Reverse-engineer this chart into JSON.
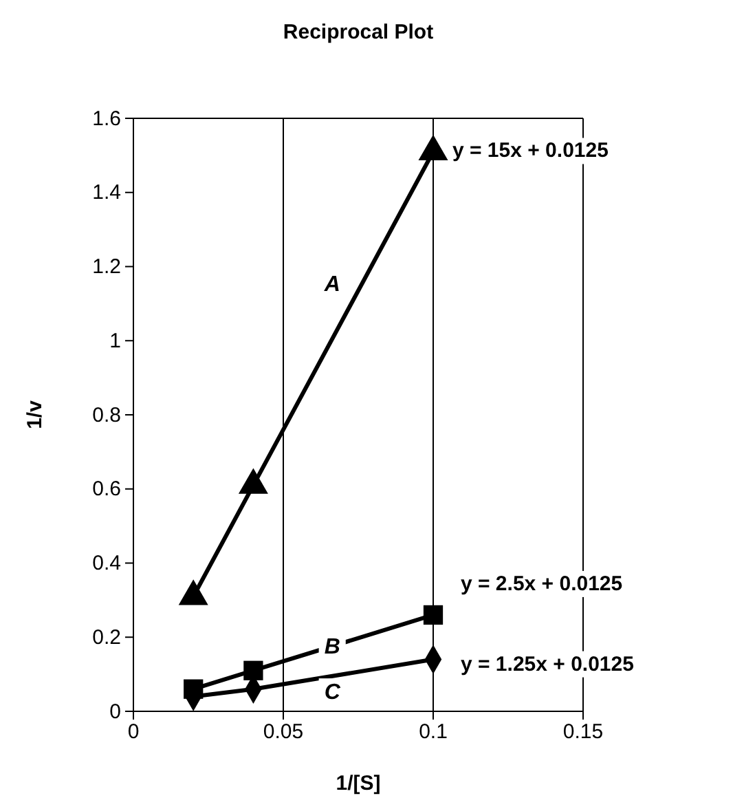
{
  "chart_data": {
    "type": "line",
    "title": "Reciprocal Plot",
    "xlabel": "1/[S]",
    "ylabel": "1/v",
    "x": [
      0.02,
      0.04,
      0.1
    ],
    "series": [
      {
        "name": "A",
        "color": "#000000",
        "marker": "triangle",
        "values": [
          0.31,
          0.61,
          1.51
        ]
      },
      {
        "name": "B",
        "color": "#000000",
        "marker": "square",
        "values": [
          0.06,
          0.11,
          0.26
        ]
      },
      {
        "name": "C",
        "color": "#000000",
        "marker": "diamond",
        "values": [
          0.04,
          0.06,
          0.14
        ]
      }
    ],
    "annotations": [
      "y = 15x + 0.0125",
      "y = 2.5x + 0.0125",
      "y = 1.25x + 0.0125"
    ],
    "xlim": [
      0,
      0.15
    ],
    "xticks": [
      0,
      0.05,
      0.1,
      0.15
    ],
    "ylim": [
      0,
      1.6
    ],
    "yticks": [
      0,
      0.2,
      0.4,
      0.6,
      0.8,
      1,
      1.2,
      1.4,
      1.6
    ],
    "grid": "x",
    "legend": false,
    "line_style": "solid"
  }
}
